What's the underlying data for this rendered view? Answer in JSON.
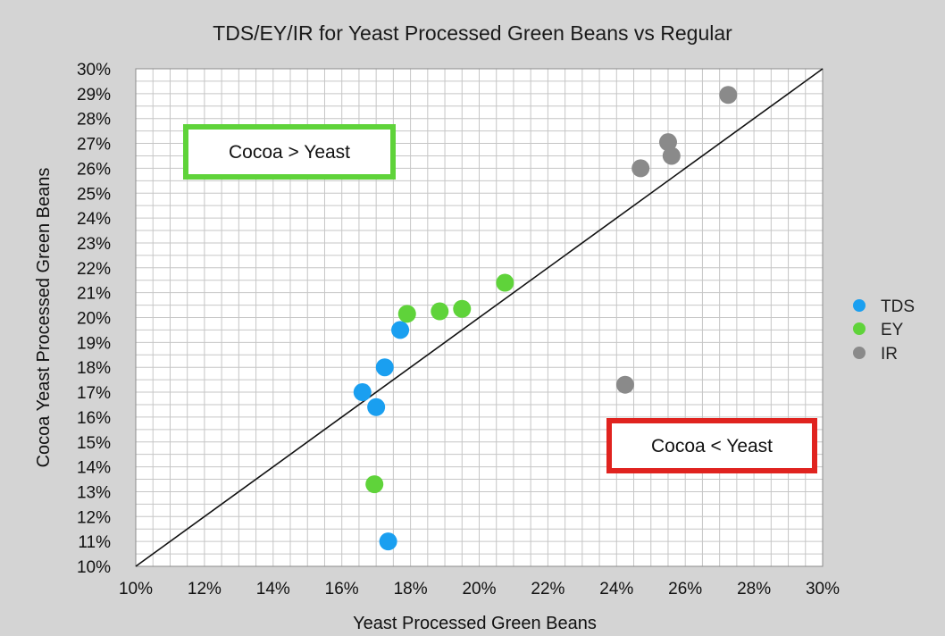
{
  "chart_data": {
    "type": "scatter",
    "title": "TDS/EY/IR for Yeast Processed Green Beans vs Regular",
    "xlabel": "Yeast Processed Green Beans",
    "ylabel": "Cocoa Yeast Processed Green Beans",
    "xlim": [
      10,
      30
    ],
    "ylim": [
      10,
      30
    ],
    "x_ticks": [
      "10%",
      "12%",
      "14%",
      "16%",
      "18%",
      "20%",
      "22%",
      "24%",
      "26%",
      "28%",
      "30%"
    ],
    "y_ticks": [
      "10%",
      "11%",
      "12%",
      "13%",
      "14%",
      "15%",
      "16%",
      "17%",
      "18%",
      "19%",
      "20%",
      "21%",
      "22%",
      "23%",
      "24%",
      "25%",
      "26%",
      "27%",
      "28%",
      "29%",
      "30%"
    ],
    "grid": true,
    "reference_line": {
      "from": [
        10,
        10
      ],
      "to": [
        30,
        30
      ]
    },
    "legend_position": "right",
    "series": [
      {
        "name": "TDS",
        "color": "#1a9ff0",
        "points": [
          [
            16.6,
            17.0
          ],
          [
            17.0,
            16.4
          ],
          [
            17.25,
            18.0
          ],
          [
            17.7,
            19.5
          ],
          [
            17.35,
            11.0
          ]
        ]
      },
      {
        "name": "EY",
        "color": "#5fd33a",
        "points": [
          [
            16.95,
            13.3
          ],
          [
            17.9,
            20.15
          ],
          [
            18.85,
            20.25
          ],
          [
            19.5,
            20.35
          ],
          [
            20.75,
            21.4
          ]
        ]
      },
      {
        "name": "IR",
        "color": "#8a8a8a",
        "points": [
          [
            24.25,
            17.3
          ],
          [
            24.7,
            26.0
          ],
          [
            25.5,
            27.05
          ],
          [
            25.6,
            26.5
          ],
          [
            27.25,
            28.95
          ]
        ]
      }
    ],
    "annotations": [
      {
        "text": "Cocoa > Yeast",
        "border_color": "#5fd33a"
      },
      {
        "text": "Cocoa < Yeast",
        "border_color": "#e0231f"
      }
    ]
  }
}
